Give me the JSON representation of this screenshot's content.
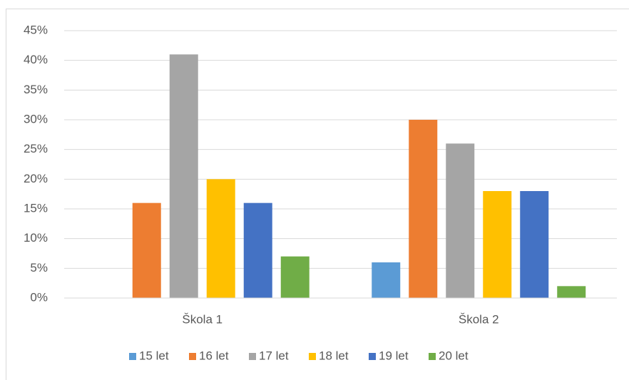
{
  "chart_data": {
    "type": "bar",
    "categories": [
      "Škola 1",
      "Škola 2"
    ],
    "series": [
      {
        "name": "15 let",
        "color": "#5b9bd5",
        "values": [
          0,
          6
        ]
      },
      {
        "name": "16 let",
        "color": "#ed7d31",
        "values": [
          16,
          30
        ]
      },
      {
        "name": "17 let",
        "color": "#a5a5a5",
        "values": [
          41,
          26
        ]
      },
      {
        "name": "18 let",
        "color": "#ffc000",
        "values": [
          20,
          18
        ]
      },
      {
        "name": "19 let",
        "color": "#4472c4",
        "values": [
          16,
          18
        ]
      },
      {
        "name": "20 let",
        "color": "#70ad47",
        "values": [
          7,
          2
        ]
      }
    ],
    "ylim": [
      0,
      45
    ],
    "yticks": [
      {
        "value": 0,
        "label": "0%"
      },
      {
        "value": 5,
        "label": "5%"
      },
      {
        "value": 10,
        "label": "10%"
      },
      {
        "value": 15,
        "label": "15%"
      },
      {
        "value": 20,
        "label": "20%"
      },
      {
        "value": 25,
        "label": "25%"
      },
      {
        "value": 30,
        "label": "30%"
      },
      {
        "value": 35,
        "label": "35%"
      },
      {
        "value": 40,
        "label": "40%"
      },
      {
        "value": 45,
        "label": "45%"
      }
    ],
    "grid": true,
    "legend": "bottom"
  }
}
